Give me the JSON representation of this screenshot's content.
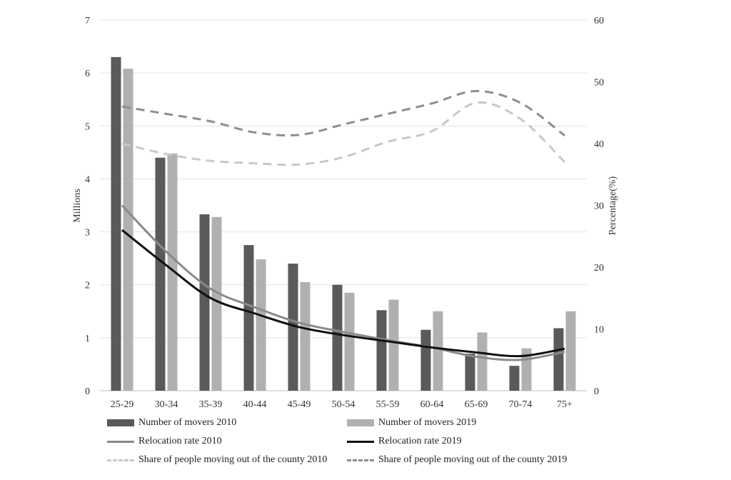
{
  "chart_data": {
    "type": "bar",
    "categories": [
      "25-29",
      "30-34",
      "35-39",
      "40-44",
      "45-49",
      "50-54",
      "55-59",
      "60-64",
      "65-69",
      "70-74",
      "75+"
    ],
    "left_axis": {
      "label": "Millions",
      "ylim": [
        0,
        7
      ],
      "ticks": [
        "0",
        "1",
        "2",
        "3",
        "4",
        "5",
        "6",
        "7"
      ]
    },
    "right_axis": {
      "label": "Percentage(%)",
      "ylim": [
        0,
        60
      ],
      "ticks": [
        "0",
        "10",
        "20",
        "30",
        "40",
        "50",
        "60"
      ]
    },
    "grid": true,
    "legend_position": "bottom",
    "series": [
      {
        "key": "movers2010",
        "name": "Number of movers 2010",
        "kind": "bar",
        "axis": "left",
        "color": "#5a5a5a",
        "values": [
          6.3,
          4.4,
          3.33,
          2.75,
          2.4,
          2.0,
          1.52,
          1.15,
          0.7,
          0.47,
          1.18
        ]
      },
      {
        "key": "movers2019",
        "name": "Number of movers 2019",
        "kind": "bar",
        "axis": "left",
        "color": "#b0b0b0",
        "values": [
          6.08,
          4.48,
          3.28,
          2.48,
          2.05,
          1.85,
          1.72,
          1.5,
          1.1,
          0.8,
          1.5
        ]
      },
      {
        "key": "rate2010",
        "name": "Relocation rate 2010",
        "kind": "line",
        "axis": "right",
        "color": "#8a8a8a",
        "dash": "solid",
        "values": [
          30.0,
          22.5,
          16.5,
          13.5,
          11.0,
          9.5,
          8.2,
          7.0,
          5.5,
          5.0,
          6.3
        ]
      },
      {
        "key": "rate2019",
        "name": "Relocation rate 2019",
        "kind": "line",
        "axis": "right",
        "color": "#111111",
        "dash": "solid",
        "values": [
          26.0,
          20.3,
          15.0,
          12.5,
          10.3,
          9.0,
          8.0,
          7.0,
          6.2,
          5.6,
          6.8
        ]
      },
      {
        "key": "share2010",
        "name": "Share of people moving out of the county 2010",
        "kind": "line",
        "axis": "right",
        "color": "#c8c8c8",
        "dash": "dashed",
        "values": [
          40.0,
          38.3,
          37.2,
          36.8,
          36.6,
          37.8,
          40.3,
          42.0,
          46.6,
          44.0,
          37.0
        ]
      },
      {
        "key": "share2019",
        "name": "Share of people moving out of the county 2019",
        "kind": "line",
        "axis": "right",
        "color": "#8e8e8e",
        "dash": "dashed",
        "values": [
          46.0,
          44.8,
          43.6,
          41.8,
          41.4,
          43.1,
          44.8,
          46.5,
          48.5,
          46.6,
          41.3
        ]
      }
    ]
  }
}
